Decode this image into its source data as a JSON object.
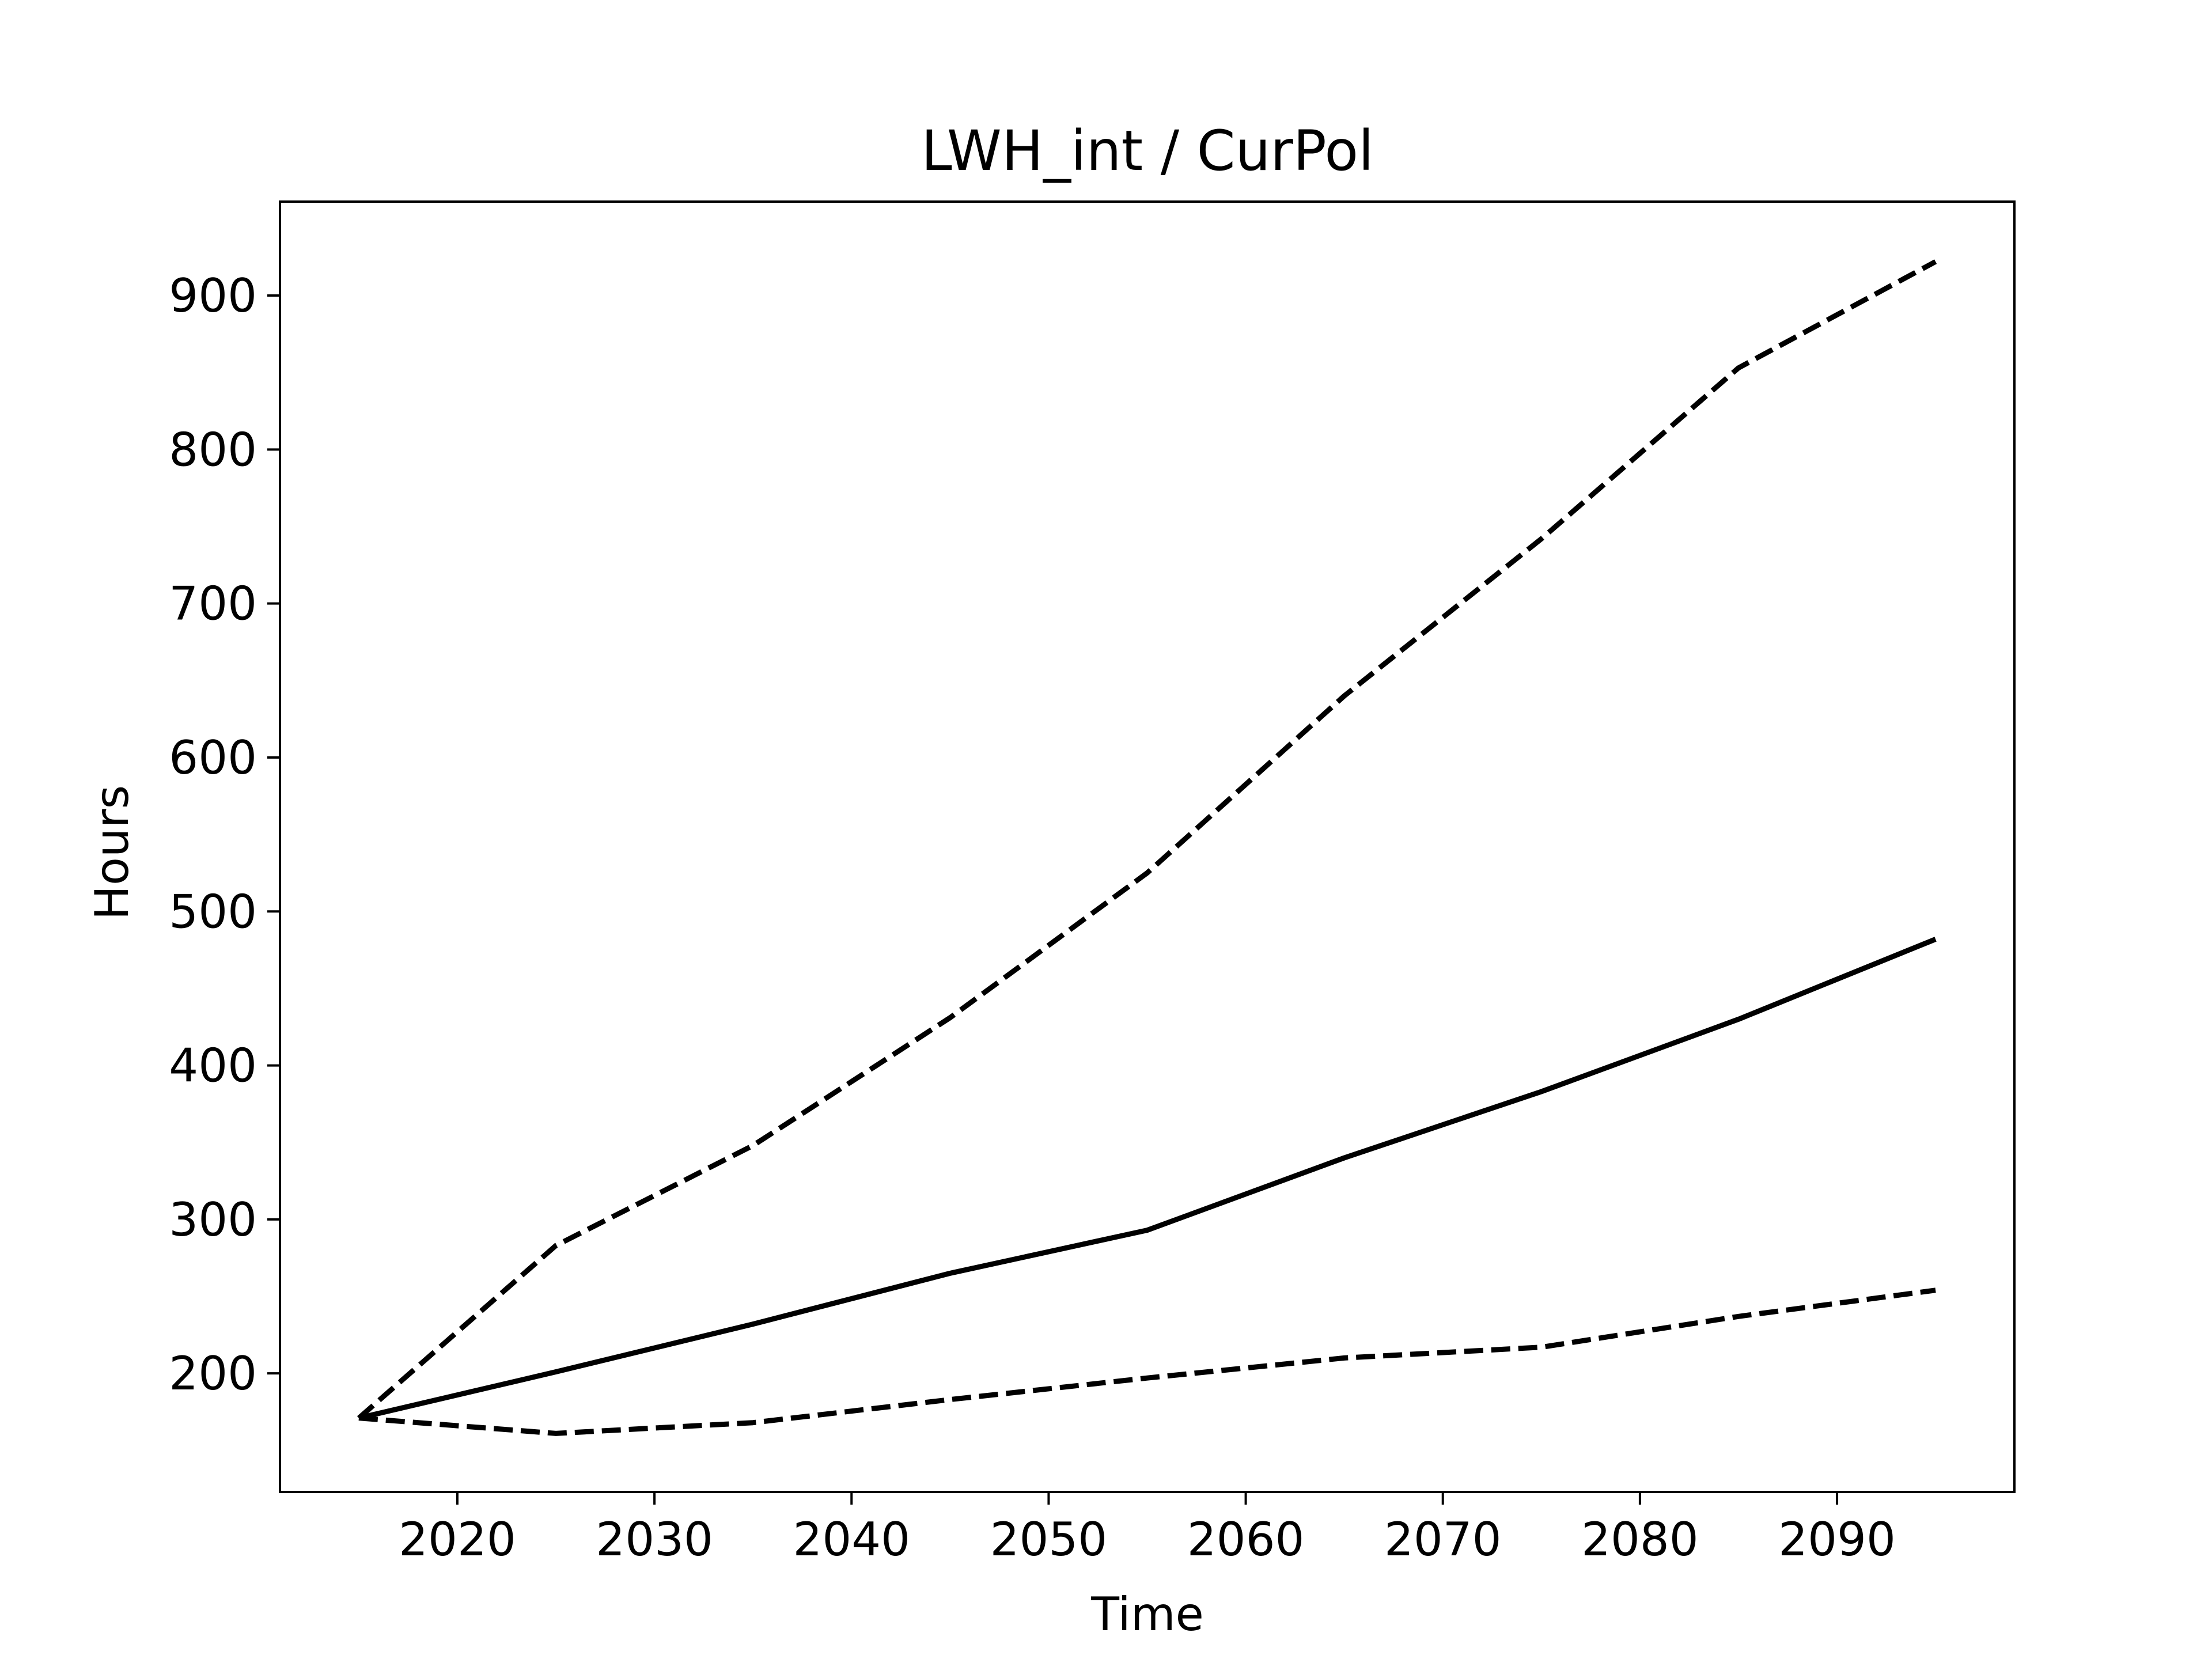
{
  "chart_data": {
    "type": "line",
    "title": "LWH_int / CurPol",
    "xlabel": "Time",
    "ylabel": "Hours",
    "xlim": [
      2011,
      2099
    ],
    "ylim": [
      123,
      961
    ],
    "xticks": [
      2020,
      2030,
      2040,
      2050,
      2060,
      2070,
      2080,
      2090
    ],
    "yticks": [
      200,
      300,
      400,
      500,
      600,
      700,
      800,
      900
    ],
    "grid": false,
    "legend": "none",
    "x": [
      2015,
      2025,
      2035,
      2045,
      2055,
      2065,
      2075,
      2085,
      2095
    ],
    "series": [
      {
        "style": "dashed",
        "color": "#000000",
        "values": [
          171,
          283,
          348,
          431,
          525,
          640,
          742,
          853,
          922
        ]
      },
      {
        "style": "solid",
        "color": "#000000",
        "values": [
          171,
          201,
          232,
          265,
          293,
          340,
          383,
          430,
          482
        ]
      },
      {
        "style": "dashed",
        "color": "#000000",
        "values": [
          171,
          161,
          168,
          183,
          197,
          210,
          217,
          237,
          254
        ]
      }
    ]
  }
}
